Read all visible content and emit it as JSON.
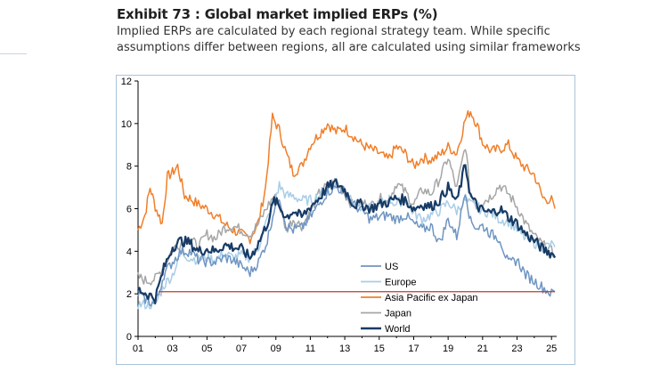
{
  "header": {
    "title": "Exhibit 73 : Global market implied ERPs (%)",
    "subtitle": "Implied ERPs are calculated by each regional strategy team. While specific assumptions differ between regions, all are calculated using similar frameworks"
  },
  "chart_data": {
    "type": "line",
    "title": "Exhibit 73 : Global market implied ERPs (%)",
    "xlabel": "",
    "ylabel": "",
    "xlim": [
      2001,
      2025.3
    ],
    "ylim": [
      0,
      12
    ],
    "x_ticks": [
      "01",
      "03",
      "05",
      "07",
      "09",
      "11",
      "13",
      "15",
      "17",
      "19",
      "21",
      "23",
      "25"
    ],
    "y_ticks": [
      "0",
      "2",
      "4",
      "6",
      "8",
      "10",
      "12"
    ],
    "reference_line": {
      "value": 2.1,
      "color": "#c0392b"
    },
    "legend_position": "center-bottom",
    "series": [
      {
        "name": "US",
        "color": "#6f95c2",
        "width": 1.5,
        "points": [
          [
            2001,
            2.0
          ],
          [
            2001.5,
            1.7
          ],
          [
            2002,
            1.5
          ],
          [
            2002.5,
            2.9
          ],
          [
            2003,
            3.5
          ],
          [
            2003.5,
            4.0
          ],
          [
            2004,
            4.0
          ],
          [
            2004.5,
            3.6
          ],
          [
            2005,
            3.5
          ],
          [
            2005.5,
            3.5
          ],
          [
            2006,
            3.7
          ],
          [
            2006.5,
            3.6
          ],
          [
            2007,
            3.3
          ],
          [
            2007.5,
            3.0
          ],
          [
            2008,
            3.5
          ],
          [
            2008.5,
            4.5
          ],
          [
            2008.9,
            6.0
          ],
          [
            2009.2,
            6.6
          ],
          [
            2009.6,
            5.2
          ],
          [
            2010,
            5.0
          ],
          [
            2010.5,
            5.1
          ],
          [
            2011,
            5.6
          ],
          [
            2011.5,
            6.2
          ],
          [
            2012,
            6.8
          ],
          [
            2012.5,
            7.0
          ],
          [
            2013,
            6.8
          ],
          [
            2013.5,
            6.2
          ],
          [
            2014,
            5.9
          ],
          [
            2014.5,
            5.5
          ],
          [
            2015,
            5.6
          ],
          [
            2015.5,
            5.7
          ],
          [
            2016,
            5.5
          ],
          [
            2016.5,
            5.7
          ],
          [
            2017,
            5.3
          ],
          [
            2017.5,
            5.0
          ],
          [
            2018,
            5.2
          ],
          [
            2018.5,
            4.4
          ],
          [
            2019,
            5.5
          ],
          [
            2019.5,
            4.7
          ],
          [
            2020,
            6.9
          ],
          [
            2020.3,
            5.4
          ],
          [
            2020.7,
            5.1
          ],
          [
            2021,
            5.2
          ],
          [
            2021.5,
            4.8
          ],
          [
            2022,
            4.6
          ],
          [
            2022.5,
            3.4
          ],
          [
            2023,
            3.6
          ],
          [
            2023.5,
            2.9
          ],
          [
            2024,
            2.6
          ],
          [
            2024.5,
            2.3
          ],
          [
            2025,
            2.0
          ],
          [
            2025.2,
            2.1
          ]
        ]
      },
      {
        "name": "Europe",
        "color": "#a9cde6",
        "width": 1.5,
        "points": [
          [
            2001,
            1.5
          ],
          [
            2001.5,
            1.5
          ],
          [
            2002,
            1.5
          ],
          [
            2002.5,
            2.4
          ],
          [
            2003,
            2.9
          ],
          [
            2003.5,
            3.9
          ],
          [
            2004,
            3.7
          ],
          [
            2004.5,
            3.6
          ],
          [
            2005,
            3.7
          ],
          [
            2005.5,
            3.6
          ],
          [
            2006,
            3.9
          ],
          [
            2006.5,
            3.7
          ],
          [
            2007,
            3.8
          ],
          [
            2007.5,
            3.7
          ],
          [
            2008,
            4.2
          ],
          [
            2008.5,
            5.5
          ],
          [
            2008.9,
            6.3
          ],
          [
            2009.2,
            7.1
          ],
          [
            2009.6,
            6.6
          ],
          [
            2010,
            6.6
          ],
          [
            2010.5,
            6.4
          ],
          [
            2011,
            6.4
          ],
          [
            2011.5,
            6.6
          ],
          [
            2012,
            7.1
          ],
          [
            2012.5,
            7.2
          ],
          [
            2013,
            6.9
          ],
          [
            2013.5,
            6.4
          ],
          [
            2014,
            6.0
          ],
          [
            2014.5,
            6.0
          ],
          [
            2015,
            6.2
          ],
          [
            2015.5,
            6.5
          ],
          [
            2016,
            6.2
          ],
          [
            2016.5,
            6.5
          ],
          [
            2017,
            5.8
          ],
          [
            2017.5,
            5.5
          ],
          [
            2018,
            5.7
          ],
          [
            2018.5,
            5.9
          ],
          [
            2019,
            6.3
          ],
          [
            2019.5,
            5.9
          ],
          [
            2020,
            6.4
          ],
          [
            2020.3,
            6.2
          ],
          [
            2020.7,
            6.1
          ],
          [
            2021,
            5.9
          ],
          [
            2021.5,
            5.8
          ],
          [
            2022,
            5.5
          ],
          [
            2022.5,
            5.4
          ],
          [
            2023,
            5.0
          ],
          [
            2023.5,
            4.6
          ],
          [
            2024,
            4.4
          ],
          [
            2024.5,
            4.2
          ],
          [
            2025,
            4.3
          ],
          [
            2025.2,
            4.2
          ]
        ]
      },
      {
        "name": "Asia Pacific ex Japan",
        "color": "#f07f2a",
        "width": 1.5,
        "points": [
          [
            2001,
            5.0
          ],
          [
            2001.4,
            5.7
          ],
          [
            2001.7,
            7.0
          ],
          [
            2002,
            6.1
          ],
          [
            2002.4,
            5.3
          ],
          [
            2002.7,
            7.5
          ],
          [
            2003,
            7.7
          ],
          [
            2003.3,
            8.0
          ],
          [
            2003.7,
            6.6
          ],
          [
            2004,
            6.5
          ],
          [
            2004.5,
            6.2
          ],
          [
            2005,
            6.0
          ],
          [
            2005.5,
            5.7
          ],
          [
            2006,
            5.3
          ],
          [
            2006.5,
            5.0
          ],
          [
            2007,
            4.8
          ],
          [
            2007.5,
            4.6
          ],
          [
            2008,
            5.4
          ],
          [
            2008.4,
            7.0
          ],
          [
            2008.8,
            10.3
          ],
          [
            2009.2,
            9.7
          ],
          [
            2009.6,
            8.6
          ],
          [
            2010,
            7.7
          ],
          [
            2010.5,
            8.0
          ],
          [
            2011,
            9.0
          ],
          [
            2011.5,
            9.5
          ],
          [
            2012,
            10.0
          ],
          [
            2012.5,
            9.6
          ],
          [
            2013,
            9.8
          ],
          [
            2013.5,
            9.4
          ],
          [
            2014,
            9.0
          ],
          [
            2014.5,
            8.8
          ],
          [
            2015,
            8.6
          ],
          [
            2015.5,
            8.3
          ],
          [
            2016,
            8.9
          ],
          [
            2016.5,
            8.6
          ],
          [
            2017,
            8.0
          ],
          [
            2017.5,
            8.4
          ],
          [
            2018,
            8.3
          ],
          [
            2018.5,
            8.5
          ],
          [
            2019,
            8.9
          ],
          [
            2019.5,
            8.6
          ],
          [
            2020,
            10.2
          ],
          [
            2020.3,
            10.6
          ],
          [
            2020.7,
            9.9
          ],
          [
            2021,
            9.1
          ],
          [
            2021.5,
            8.7
          ],
          [
            2022,
            8.8
          ],
          [
            2022.5,
            9.0
          ],
          [
            2023,
            8.3
          ],
          [
            2023.5,
            7.9
          ],
          [
            2024,
            7.6
          ],
          [
            2024.5,
            6.5
          ],
          [
            2025,
            6.4
          ],
          [
            2025.2,
            6.0
          ]
        ]
      },
      {
        "name": "Japan",
        "color": "#a6a6a6",
        "width": 1.5,
        "points": [
          [
            2001,
            2.8
          ],
          [
            2001.5,
            2.6
          ],
          [
            2002,
            2.7
          ],
          [
            2002.5,
            3.3
          ],
          [
            2003,
            4.1
          ],
          [
            2003.5,
            4.4
          ],
          [
            2004,
            4.6
          ],
          [
            2004.5,
            4.2
          ],
          [
            2005,
            4.8
          ],
          [
            2005.5,
            4.6
          ],
          [
            2006,
            5.1
          ],
          [
            2006.5,
            5.2
          ],
          [
            2007,
            5.0
          ],
          [
            2007.5,
            4.8
          ],
          [
            2008,
            5.3
          ],
          [
            2008.5,
            6.1
          ],
          [
            2008.9,
            6.6
          ],
          [
            2009.2,
            6.2
          ],
          [
            2009.6,
            5.0
          ],
          [
            2010,
            5.5
          ],
          [
            2010.5,
            5.2
          ],
          [
            2011,
            5.8
          ],
          [
            2011.5,
            6.7
          ],
          [
            2012,
            7.1
          ],
          [
            2012.5,
            7.3
          ],
          [
            2013,
            6.7
          ],
          [
            2013.5,
            6.1
          ],
          [
            2014,
            6.3
          ],
          [
            2014.5,
            6.1
          ],
          [
            2015,
            6.5
          ],
          [
            2015.5,
            6.3
          ],
          [
            2016,
            7.2
          ],
          [
            2016.5,
            6.8
          ],
          [
            2017,
            6.2
          ],
          [
            2017.5,
            6.9
          ],
          [
            2018,
            6.7
          ],
          [
            2018.5,
            7.4
          ],
          [
            2019,
            8.4
          ],
          [
            2019.5,
            6.9
          ],
          [
            2020,
            9.0
          ],
          [
            2020.3,
            6.6
          ],
          [
            2020.7,
            6.3
          ],
          [
            2021,
            6.3
          ],
          [
            2021.5,
            6.6
          ],
          [
            2022,
            7.1
          ],
          [
            2022.5,
            6.7
          ],
          [
            2023,
            6.1
          ],
          [
            2023.5,
            5.3
          ],
          [
            2024,
            4.7
          ],
          [
            2024.5,
            4.3
          ],
          [
            2025,
            4.0
          ],
          [
            2025.2,
            3.7
          ]
        ]
      },
      {
        "name": "World",
        "color": "#173b66",
        "width": 2.2,
        "points": [
          [
            2001,
            2.2
          ],
          [
            2001.5,
            2.0
          ],
          [
            2002,
            1.8
          ],
          [
            2002.5,
            3.2
          ],
          [
            2003,
            4.2
          ],
          [
            2003.5,
            4.5
          ],
          [
            2004,
            4.4
          ],
          [
            2004.5,
            4.0
          ],
          [
            2005,
            4.1
          ],
          [
            2005.5,
            4.0
          ],
          [
            2006,
            4.3
          ],
          [
            2006.5,
            4.2
          ],
          [
            2007,
            4.1
          ],
          [
            2007.5,
            3.7
          ],
          [
            2008,
            4.4
          ],
          [
            2008.5,
            5.3
          ],
          [
            2008.9,
            6.4
          ],
          [
            2009.2,
            6.1
          ],
          [
            2009.6,
            5.6
          ],
          [
            2010,
            5.9
          ],
          [
            2010.5,
            5.6
          ],
          [
            2011,
            6.1
          ],
          [
            2011.5,
            6.5
          ],
          [
            2012,
            7.0
          ],
          [
            2012.5,
            7.2
          ],
          [
            2013,
            6.9
          ],
          [
            2013.5,
            6.2
          ],
          [
            2014,
            6.2
          ],
          [
            2014.5,
            6.0
          ],
          [
            2015,
            6.2
          ],
          [
            2015.5,
            6.3
          ],
          [
            2016,
            6.5
          ],
          [
            2016.5,
            6.4
          ],
          [
            2017,
            6.0
          ],
          [
            2017.5,
            6.2
          ],
          [
            2018,
            6.1
          ],
          [
            2018.5,
            6.4
          ],
          [
            2019,
            7.0
          ],
          [
            2019.5,
            6.3
          ],
          [
            2020,
            8.1
          ],
          [
            2020.3,
            6.6
          ],
          [
            2020.7,
            6.1
          ],
          [
            2021,
            5.9
          ],
          [
            2021.5,
            5.8
          ],
          [
            2022,
            6.0
          ],
          [
            2022.5,
            5.6
          ],
          [
            2023,
            5.3
          ],
          [
            2023.5,
            4.8
          ],
          [
            2024,
            4.5
          ],
          [
            2024.5,
            4.1
          ],
          [
            2025,
            3.9
          ],
          [
            2025.2,
            3.7
          ]
        ]
      }
    ]
  }
}
